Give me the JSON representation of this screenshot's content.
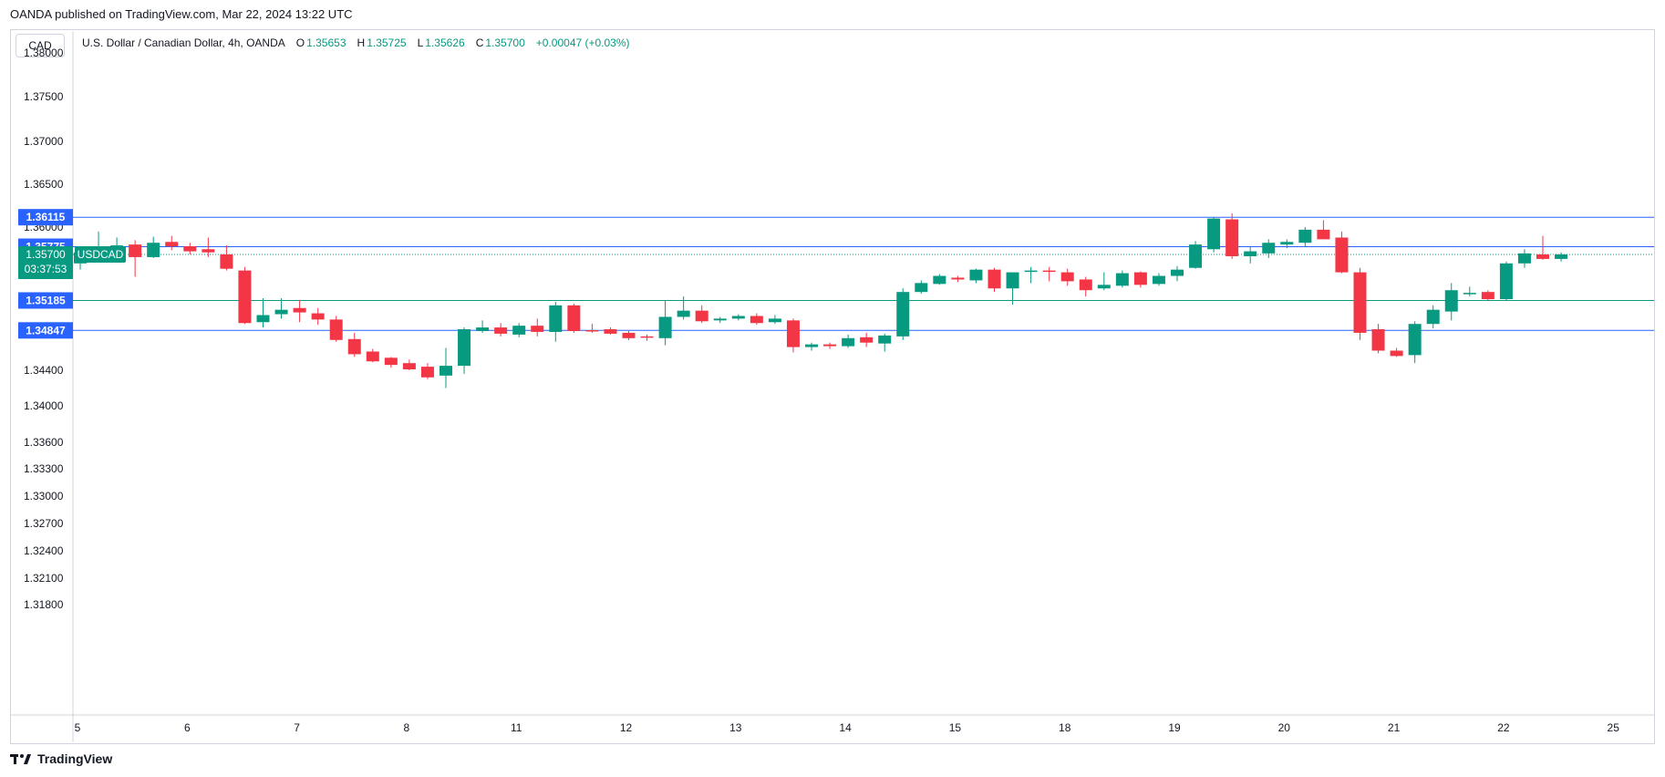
{
  "header": {
    "credit": "OANDA published on TradingView.com, Mar 22, 2024 13:22 UTC"
  },
  "currency_label": "CAD",
  "legend": {
    "symbol": "U.S. Dollar / Canadian Dollar, 4h, OANDA",
    "o_label": "O",
    "o_value": "1.35653",
    "h_label": "H",
    "h_value": "1.35725",
    "l_label": "L",
    "l_value": "1.35626",
    "c_label": "C",
    "c_value": "1.35700",
    "change": "+0.00047 (+0.03%)"
  },
  "footer": {
    "brand": "TradingView"
  },
  "colors": {
    "up": "#089981",
    "down": "#f23645",
    "line": "#2962ff",
    "grid": "#d1d4dc"
  },
  "chart_data": {
    "type": "candlestick",
    "symbol": "USDCAD",
    "timeframe": "4h",
    "y_ticks": [
      "1.38000",
      "1.37500",
      "1.37000",
      "1.36500",
      "1.36000",
      "1.34400",
      "1.34000",
      "1.33600",
      "1.33300",
      "1.33000",
      "1.32700",
      "1.32400",
      "1.32100",
      "1.31800"
    ],
    "x_ticks": [
      {
        "label": "5",
        "bar": 0
      },
      {
        "label": "6",
        "bar": 6
      },
      {
        "label": "7",
        "bar": 12
      },
      {
        "label": "8",
        "bar": 18
      },
      {
        "label": "11",
        "bar": 24
      },
      {
        "label": "12",
        "bar": 30
      },
      {
        "label": "13",
        "bar": 36
      },
      {
        "label": "14",
        "bar": 42
      },
      {
        "label": "15",
        "bar": 48
      },
      {
        "label": "18",
        "bar": 54
      },
      {
        "label": "19",
        "bar": 60
      },
      {
        "label": "20",
        "bar": 66
      },
      {
        "label": "21",
        "bar": 72
      },
      {
        "label": "22",
        "bar": 78
      },
      {
        "label": "25",
        "bar": 84
      }
    ],
    "horizontal_lines": [
      {
        "value": 1.36115,
        "label": "1.36115"
      },
      {
        "value": 1.35775,
        "label": "1.35775"
      },
      {
        "value": 1.35185,
        "label": "1.35185"
      },
      {
        "value": 1.34847,
        "label": "1.34847"
      }
    ],
    "last_price": {
      "value": 1.357,
      "label": "1.35700",
      "symbol": "USDCAD",
      "countdown": "03:37:53"
    },
    "candles": [
      {
        "o": 1.356,
        "h": 1.3577,
        "l": 1.3553,
        "c": 1.3572
      },
      {
        "o": 1.3574,
        "h": 1.3595,
        "l": 1.357,
        "c": 1.3578
      },
      {
        "o": 1.3578,
        "h": 1.3588,
        "l": 1.3571,
        "c": 1.3579
      },
      {
        "o": 1.358,
        "h": 1.3585,
        "l": 1.3545,
        "c": 1.3567
      },
      {
        "o": 1.3567,
        "h": 1.3589,
        "l": 1.3566,
        "c": 1.3582
      },
      {
        "o": 1.3583,
        "h": 1.359,
        "l": 1.3574,
        "c": 1.3578
      },
      {
        "o": 1.3578,
        "h": 1.3582,
        "l": 1.357,
        "c": 1.3573
      },
      {
        "o": 1.3575,
        "h": 1.3588,
        "l": 1.3567,
        "c": 1.3572
      },
      {
        "o": 1.357,
        "h": 1.3579,
        "l": 1.3552,
        "c": 1.3554
      },
      {
        "o": 1.3552,
        "h": 1.3556,
        "l": 1.3492,
        "c": 1.3493
      },
      {
        "o": 1.3494,
        "h": 1.3521,
        "l": 1.3488,
        "c": 1.3502
      },
      {
        "o": 1.3503,
        "h": 1.3521,
        "l": 1.3498,
        "c": 1.3508
      },
      {
        "o": 1.351,
        "h": 1.3519,
        "l": 1.3494,
        "c": 1.3505
      },
      {
        "o": 1.3504,
        "h": 1.351,
        "l": 1.3491,
        "c": 1.3497
      },
      {
        "o": 1.3497,
        "h": 1.3501,
        "l": 1.3472,
        "c": 1.3474
      },
      {
        "o": 1.3475,
        "h": 1.3482,
        "l": 1.3455,
        "c": 1.3458
      },
      {
        "o": 1.3461,
        "h": 1.3464,
        "l": 1.3449,
        "c": 1.345
      },
      {
        "o": 1.3454,
        "h": 1.3455,
        "l": 1.3443,
        "c": 1.3446
      },
      {
        "o": 1.3448,
        "h": 1.3452,
        "l": 1.344,
        "c": 1.3441
      },
      {
        "o": 1.3444,
        "h": 1.3448,
        "l": 1.343,
        "c": 1.3432
      },
      {
        "o": 1.3434,
        "h": 1.3465,
        "l": 1.342,
        "c": 1.3445
      },
      {
        "o": 1.3445,
        "h": 1.3488,
        "l": 1.3436,
        "c": 1.3486
      },
      {
        "o": 1.3484,
        "h": 1.3496,
        "l": 1.3482,
        "c": 1.3488
      },
      {
        "o": 1.3488,
        "h": 1.3493,
        "l": 1.3478,
        "c": 1.3481
      },
      {
        "o": 1.348,
        "h": 1.3493,
        "l": 1.3477,
        "c": 1.349
      },
      {
        "o": 1.349,
        "h": 1.3498,
        "l": 1.3478,
        "c": 1.3483
      },
      {
        "o": 1.3483,
        "h": 1.3517,
        "l": 1.3472,
        "c": 1.3513
      },
      {
        "o": 1.3513,
        "h": 1.3515,
        "l": 1.3482,
        "c": 1.3484
      },
      {
        "o": 1.3485,
        "h": 1.3492,
        "l": 1.3482,
        "c": 1.3484
      },
      {
        "o": 1.3486,
        "h": 1.3488,
        "l": 1.348,
        "c": 1.3481
      },
      {
        "o": 1.3482,
        "h": 1.3484,
        "l": 1.3474,
        "c": 1.3476
      },
      {
        "o": 1.3478,
        "h": 1.348,
        "l": 1.3473,
        "c": 1.3477
      },
      {
        "o": 1.3476,
        "h": 1.3518,
        "l": 1.3468,
        "c": 1.35
      },
      {
        "o": 1.35,
        "h": 1.3523,
        "l": 1.3497,
        "c": 1.3507
      },
      {
        "o": 1.3507,
        "h": 1.3513,
        "l": 1.3493,
        "c": 1.3495
      },
      {
        "o": 1.3496,
        "h": 1.35,
        "l": 1.3493,
        "c": 1.3498
      },
      {
        "o": 1.3498,
        "h": 1.3503,
        "l": 1.3496,
        "c": 1.3501
      },
      {
        "o": 1.3501,
        "h": 1.3504,
        "l": 1.3491,
        "c": 1.3493
      },
      {
        "o": 1.3494,
        "h": 1.3502,
        "l": 1.3492,
        "c": 1.3498
      },
      {
        "o": 1.3496,
        "h": 1.3498,
        "l": 1.346,
        "c": 1.3466
      },
      {
        "o": 1.3466,
        "h": 1.3471,
        "l": 1.3462,
        "c": 1.3469
      },
      {
        "o": 1.3469,
        "h": 1.3471,
        "l": 1.3464,
        "c": 1.3467
      },
      {
        "o": 1.3467,
        "h": 1.348,
        "l": 1.3465,
        "c": 1.3476
      },
      {
        "o": 1.3477,
        "h": 1.3482,
        "l": 1.3466,
        "c": 1.3471
      },
      {
        "o": 1.347,
        "h": 1.3481,
        "l": 1.3461,
        "c": 1.3479
      },
      {
        "o": 1.3478,
        "h": 1.3532,
        "l": 1.3474,
        "c": 1.3528
      },
      {
        "o": 1.3528,
        "h": 1.3541,
        "l": 1.3526,
        "c": 1.3538
      },
      {
        "o": 1.3537,
        "h": 1.3548,
        "l": 1.3536,
        "c": 1.3546
      },
      {
        "o": 1.3544,
        "h": 1.3546,
        "l": 1.3539,
        "c": 1.3542
      },
      {
        "o": 1.3541,
        "h": 1.3554,
        "l": 1.3538,
        "c": 1.3553
      },
      {
        "o": 1.3553,
        "h": 1.3555,
        "l": 1.3528,
        "c": 1.3532
      },
      {
        "o": 1.3532,
        "h": 1.355,
        "l": 1.3514,
        "c": 1.355
      },
      {
        "o": 1.3552,
        "h": 1.3556,
        "l": 1.3538,
        "c": 1.3552
      },
      {
        "o": 1.3552,
        "h": 1.3556,
        "l": 1.354,
        "c": 1.3551
      },
      {
        "o": 1.355,
        "h": 1.3554,
        "l": 1.3535,
        "c": 1.354
      },
      {
        "o": 1.3542,
        "h": 1.3545,
        "l": 1.3523,
        "c": 1.353
      },
      {
        "o": 1.3532,
        "h": 1.355,
        "l": 1.353,
        "c": 1.3536
      },
      {
        "o": 1.3535,
        "h": 1.3552,
        "l": 1.3533,
        "c": 1.3549
      },
      {
        "o": 1.355,
        "h": 1.3551,
        "l": 1.3533,
        "c": 1.3536
      },
      {
        "o": 1.3537,
        "h": 1.3549,
        "l": 1.3535,
        "c": 1.3546
      },
      {
        "o": 1.3546,
        "h": 1.3557,
        "l": 1.354,
        "c": 1.3553
      },
      {
        "o": 1.3555,
        "h": 1.3584,
        "l": 1.3554,
        "c": 1.358
      },
      {
        "o": 1.3575,
        "h": 1.3612,
        "l": 1.3572,
        "c": 1.361
      },
      {
        "o": 1.3609,
        "h": 1.3616,
        "l": 1.3565,
        "c": 1.3568
      },
      {
        "o": 1.3568,
        "h": 1.3577,
        "l": 1.356,
        "c": 1.3573
      },
      {
        "o": 1.3571,
        "h": 1.3586,
        "l": 1.3566,
        "c": 1.3582
      },
      {
        "o": 1.358,
        "h": 1.3586,
        "l": 1.3576,
        "c": 1.3583
      },
      {
        "o": 1.3582,
        "h": 1.36,
        "l": 1.3577,
        "c": 1.3597
      },
      {
        "o": 1.3597,
        "h": 1.3608,
        "l": 1.3587,
        "c": 1.3586
      },
      {
        "o": 1.3588,
        "h": 1.3595,
        "l": 1.3549,
        "c": 1.355
      },
      {
        "o": 1.355,
        "h": 1.3555,
        "l": 1.3474,
        "c": 1.3482
      },
      {
        "o": 1.3486,
        "h": 1.3492,
        "l": 1.3459,
        "c": 1.3462
      },
      {
        "o": 1.3462,
        "h": 1.3465,
        "l": 1.3455,
        "c": 1.3456
      },
      {
        "o": 1.3457,
        "h": 1.3495,
        "l": 1.3448,
        "c": 1.3492
      },
      {
        "o": 1.3492,
        "h": 1.3513,
        "l": 1.3487,
        "c": 1.3508
      },
      {
        "o": 1.3506,
        "h": 1.3538,
        "l": 1.3496,
        "c": 1.353
      },
      {
        "o": 1.3526,
        "h": 1.3534,
        "l": 1.3523,
        "c": 1.3527
      },
      {
        "o": 1.3528,
        "h": 1.353,
        "l": 1.3518,
        "c": 1.352
      },
      {
        "o": 1.352,
        "h": 1.3562,
        "l": 1.3519,
        "c": 1.356
      },
      {
        "o": 1.356,
        "h": 1.3575,
        "l": 1.3555,
        "c": 1.3571
      },
      {
        "o": 1.357,
        "h": 1.359,
        "l": 1.3564,
        "c": 1.3565
      },
      {
        "o": 1.3565,
        "h": 1.3572,
        "l": 1.3562,
        "c": 1.357
      }
    ]
  }
}
